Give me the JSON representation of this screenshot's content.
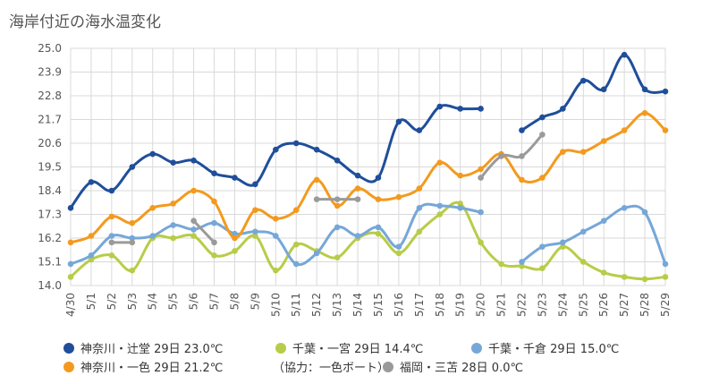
{
  "chart_data": {
    "type": "line",
    "title": "海岸付近の海水温変化",
    "xlabel": "",
    "ylabel": "",
    "ylim": [
      14.0,
      25.0
    ],
    "yticks": [
      "25.0",
      "23.9",
      "22.8",
      "21.7",
      "20.6",
      "19.5",
      "18.4",
      "17.3",
      "16.2",
      "15.1",
      "14.0"
    ],
    "grid": true,
    "legend_position": "bottom",
    "categories": [
      "4/30",
      "5/1",
      "5/2",
      "5/3",
      "5/4",
      "5/5",
      "5/6",
      "5/7",
      "5/8",
      "5/9",
      "5/10",
      "5/11",
      "5/12",
      "5/13",
      "5/14",
      "5/15",
      "5/16",
      "5/17",
      "5/18",
      "5/19",
      "5/20",
      "5/21",
      "5/22",
      "5/23",
      "5/24",
      "5/25",
      "5/26",
      "5/27",
      "5/28",
      "5/29"
    ],
    "series": [
      {
        "name": "神奈川・辻堂 29日 23.0℃",
        "color": "#1f4e9a",
        "values": [
          17.6,
          18.8,
          18.4,
          19.5,
          20.1,
          19.7,
          19.8,
          19.2,
          19.0,
          18.7,
          20.3,
          20.6,
          20.3,
          19.8,
          19.1,
          19.0,
          21.6,
          21.2,
          22.3,
          22.2,
          22.2,
          null,
          21.2,
          21.8,
          22.2,
          23.5,
          23.1,
          24.7,
          23.1,
          23.0
        ]
      },
      {
        "name": "千葉・一宮 29日 14.4℃",
        "color": "#b8cc48",
        "values": [
          14.4,
          15.2,
          15.4,
          14.7,
          16.2,
          16.2,
          16.3,
          15.4,
          15.6,
          16.3,
          14.7,
          15.9,
          15.6,
          15.3,
          16.2,
          16.4,
          15.5,
          16.5,
          17.3,
          17.8,
          16.0,
          15.0,
          14.9,
          14.8,
          15.8,
          15.1,
          14.6,
          14.4,
          14.3,
          14.4
        ]
      },
      {
        "name": "千葉・千倉 29日 15.0℃",
        "color": "#76a7d8",
        "values": [
          15.0,
          15.4,
          16.3,
          16.2,
          16.3,
          16.8,
          16.6,
          16.9,
          16.4,
          16.5,
          16.3,
          15.0,
          15.5,
          16.7,
          16.3,
          16.7,
          15.8,
          17.6,
          17.7,
          17.6,
          17.4,
          null,
          15.1,
          15.8,
          16.0,
          16.5,
          17.0,
          17.6,
          17.4,
          15.0
        ]
      },
      {
        "name": "神奈川・一色 29日 21.2℃",
        "color": "#f39a1e",
        "values": [
          16.0,
          16.3,
          17.2,
          16.9,
          17.6,
          17.8,
          18.4,
          17.9,
          16.2,
          17.5,
          17.1,
          17.5,
          18.9,
          17.7,
          18.5,
          18.0,
          18.1,
          18.5,
          19.7,
          19.1,
          19.4,
          20.1,
          18.9,
          19.0,
          20.2,
          20.2,
          20.7,
          21.2,
          22.0,
          21.2
        ]
      },
      {
        "name": "福岡・三苫 28日 0.0℃",
        "color": "#9a9a9a",
        "values": [
          null,
          null,
          16.0,
          16.0,
          null,
          null,
          17.0,
          16.0,
          null,
          null,
          null,
          null,
          18.0,
          18.0,
          18.0,
          null,
          null,
          null,
          null,
          null,
          19.0,
          20.0,
          20.0,
          21.0,
          null,
          null,
          null,
          null,
          null,
          null
        ]
      }
    ],
    "legend_extra": "（協力：一色ボート）"
  }
}
